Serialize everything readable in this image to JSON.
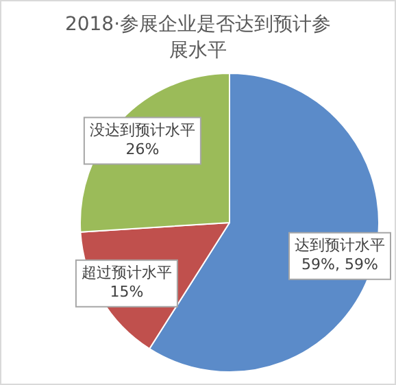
{
  "chart_data": {
    "type": "pie",
    "title": "2018·参展企业是否达到预计参展水平",
    "categories": [
      "达到预计水平",
      "超过预计水平",
      "没达到预计水平"
    ],
    "values": [
      59,
      15,
      26
    ],
    "colors": [
      "#5b8bc9",
      "#c0504d",
      "#9bbb59"
    ],
    "value_labels": [
      "59%, 59%",
      "15%",
      "26%"
    ],
    "legend": false
  }
}
